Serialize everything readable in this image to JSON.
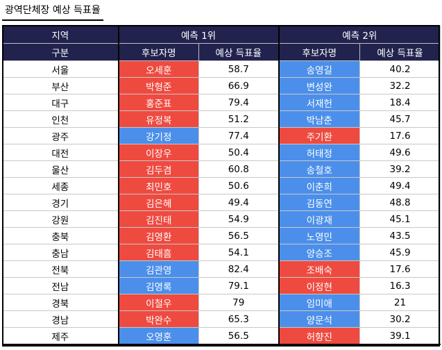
{
  "title": "광역단체장 예상 득표율",
  "colors": {
    "header_bg": "#22224e",
    "red": "#ef4a40",
    "blue": "#4b8fea"
  },
  "header": {
    "region_top": "지역",
    "region_bottom": "구분",
    "group1": "예측 1위",
    "group2": "예측 2위",
    "candidate": "후보자명",
    "rate": "예상 득표율"
  },
  "rows": [
    {
      "region": "서울",
      "c1": "오세훈",
      "p1": "58.7",
      "col1": "red",
      "c2": "송영길",
      "p2": "40.2",
      "col2": "blue"
    },
    {
      "region": "부산",
      "c1": "박형준",
      "p1": "66.9",
      "col1": "red",
      "c2": "변성완",
      "p2": "32.2",
      "col2": "blue"
    },
    {
      "region": "대구",
      "c1": "홍준표",
      "p1": "79.4",
      "col1": "red",
      "c2": "서재헌",
      "p2": "18.4",
      "col2": "blue"
    },
    {
      "region": "인천",
      "c1": "유정복",
      "p1": "51.2",
      "col1": "red",
      "c2": "박남춘",
      "p2": "45.7",
      "col2": "blue"
    },
    {
      "region": "광주",
      "c1": "강기정",
      "p1": "77.4",
      "col1": "blue",
      "c2": "주기환",
      "p2": "17.6",
      "col2": "red"
    },
    {
      "region": "대전",
      "c1": "이장우",
      "p1": "50.4",
      "col1": "red",
      "c2": "허태정",
      "p2": "49.6",
      "col2": "blue"
    },
    {
      "region": "울산",
      "c1": "김두겸",
      "p1": "60.8",
      "col1": "red",
      "c2": "송철호",
      "p2": "39.2",
      "col2": "blue"
    },
    {
      "region": "세종",
      "c1": "최민호",
      "p1": "50.6",
      "col1": "red",
      "c2": "이춘희",
      "p2": "49.4",
      "col2": "blue"
    },
    {
      "region": "경기",
      "c1": "김은혜",
      "p1": "49.4",
      "col1": "red",
      "c2": "김동연",
      "p2": "48.8",
      "col2": "blue"
    },
    {
      "region": "강원",
      "c1": "김진태",
      "p1": "54.9",
      "col1": "red",
      "c2": "이광재",
      "p2": "45.1",
      "col2": "blue"
    },
    {
      "region": "충북",
      "c1": "김영환",
      "p1": "56.5",
      "col1": "red",
      "c2": "노영민",
      "p2": "43.5",
      "col2": "blue"
    },
    {
      "region": "충남",
      "c1": "김태흠",
      "p1": "54.1",
      "col1": "red",
      "c2": "양승조",
      "p2": "45.9",
      "col2": "blue"
    },
    {
      "region": "전북",
      "c1": "김관영",
      "p1": "82.4",
      "col1": "blue",
      "c2": "조배숙",
      "p2": "17.6",
      "col2": "red"
    },
    {
      "region": "전남",
      "c1": "김영록",
      "p1": "79.1",
      "col1": "blue",
      "c2": "이정현",
      "p2": "16.3",
      "col2": "red"
    },
    {
      "region": "경북",
      "c1": "이철우",
      "p1": "79",
      "col1": "red",
      "c2": "임미애",
      "p2": "21",
      "col2": "blue"
    },
    {
      "region": "경남",
      "c1": "박완수",
      "p1": "65.3",
      "col1": "red",
      "c2": "양문석",
      "p2": "30.2",
      "col2": "blue"
    },
    {
      "region": "제주",
      "c1": "오영훈",
      "p1": "56.5",
      "col1": "blue",
      "c2": "허향진",
      "p2": "39.1",
      "col2": "red"
    }
  ]
}
